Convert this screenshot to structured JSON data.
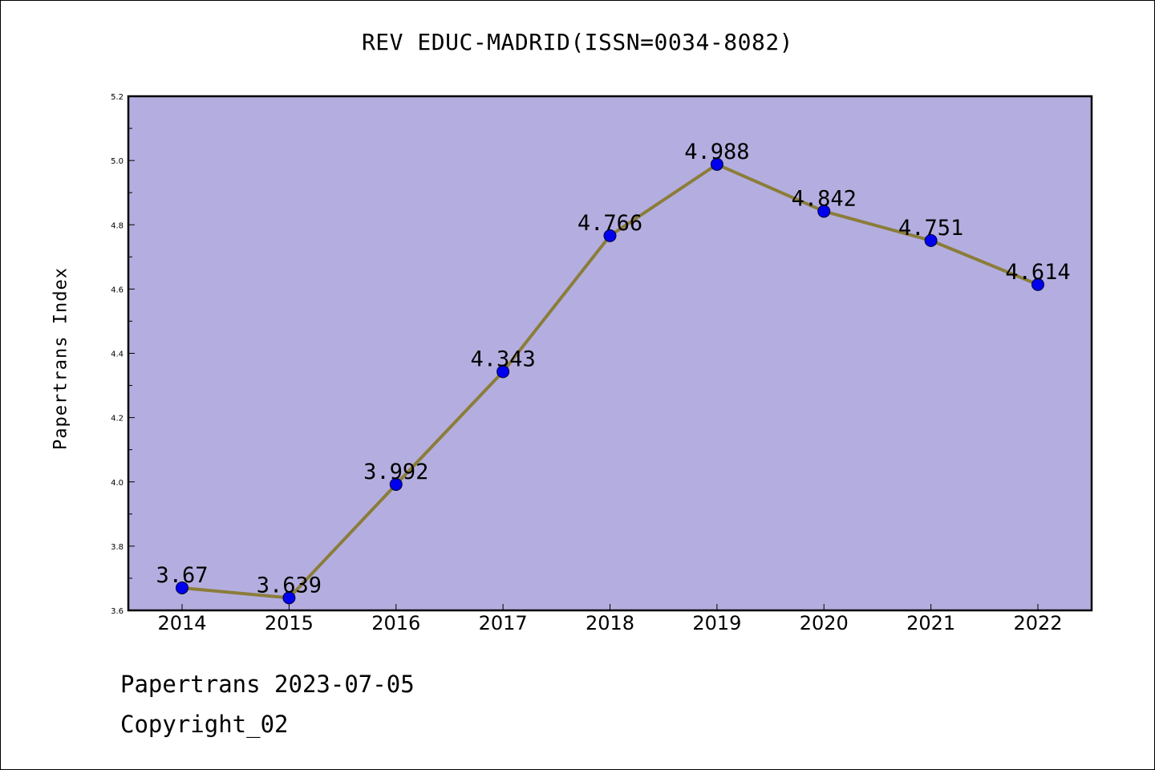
{
  "chart_data": {
    "type": "line",
    "title": "REV EDUC-MADRID(ISSN=0034-8082)",
    "xlabel": "",
    "ylabel": "Papertrans Index",
    "categories": [
      "2014",
      "2015",
      "2016",
      "2017",
      "2018",
      "2019",
      "2020",
      "2021",
      "2022"
    ],
    "series": [
      {
        "values": [
          3.67,
          3.639,
          3.992,
          4.343,
          4.766,
          4.988,
          4.842,
          4.751,
          4.614
        ],
        "labels": [
          "3.67",
          "3.639",
          "3.992",
          "4.343",
          "4.766",
          "4.988",
          "4.842",
          "4.751",
          "4.614"
        ]
      }
    ],
    "ylim": [
      3.6,
      5.2
    ],
    "yticks": [
      "3.6",
      "3.8",
      "4.0",
      "4.2",
      "4.4",
      "4.6",
      "4.8",
      "5.0",
      "5.2"
    ],
    "grid": false,
    "legend": "none"
  },
  "colors": {
    "plot_background": "#b4aee0",
    "line": "#8b7d3a",
    "marker": "#0000ee",
    "frame": "#000000"
  },
  "footer": {
    "date_text": "Papertrans 2023-07-05",
    "copyright_text": "Copyright_02"
  }
}
